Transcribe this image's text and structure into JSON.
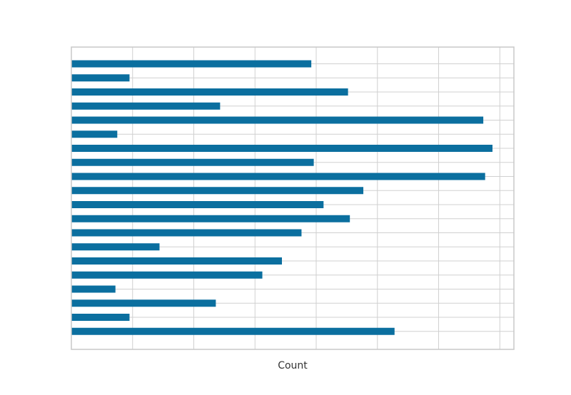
{
  "chart_data": {
    "type": "bar",
    "orientation": "horizontal",
    "title": "",
    "xlabel": "Count",
    "ylabel": "",
    "grid": true,
    "bar_color": "#0b6f9f",
    "grid_color": "#d0d0d0",
    "frame_color": "#c8c8c8",
    "xlim": [
      0,
      7.23
    ],
    "categories": [
      "",
      "",
      "",
      "",
      "",
      "",
      "",
      "",
      "",
      "",
      "",
      "",
      "",
      "",
      "",
      "",
      "",
      "",
      "",
      ""
    ],
    "values": [
      3.92,
      0.95,
      4.52,
      2.43,
      6.73,
      0.75,
      6.88,
      3.96,
      6.76,
      4.77,
      4.12,
      4.55,
      3.76,
      1.44,
      3.44,
      3.12,
      0.72,
      2.36,
      0.95,
      5.28
    ]
  }
}
